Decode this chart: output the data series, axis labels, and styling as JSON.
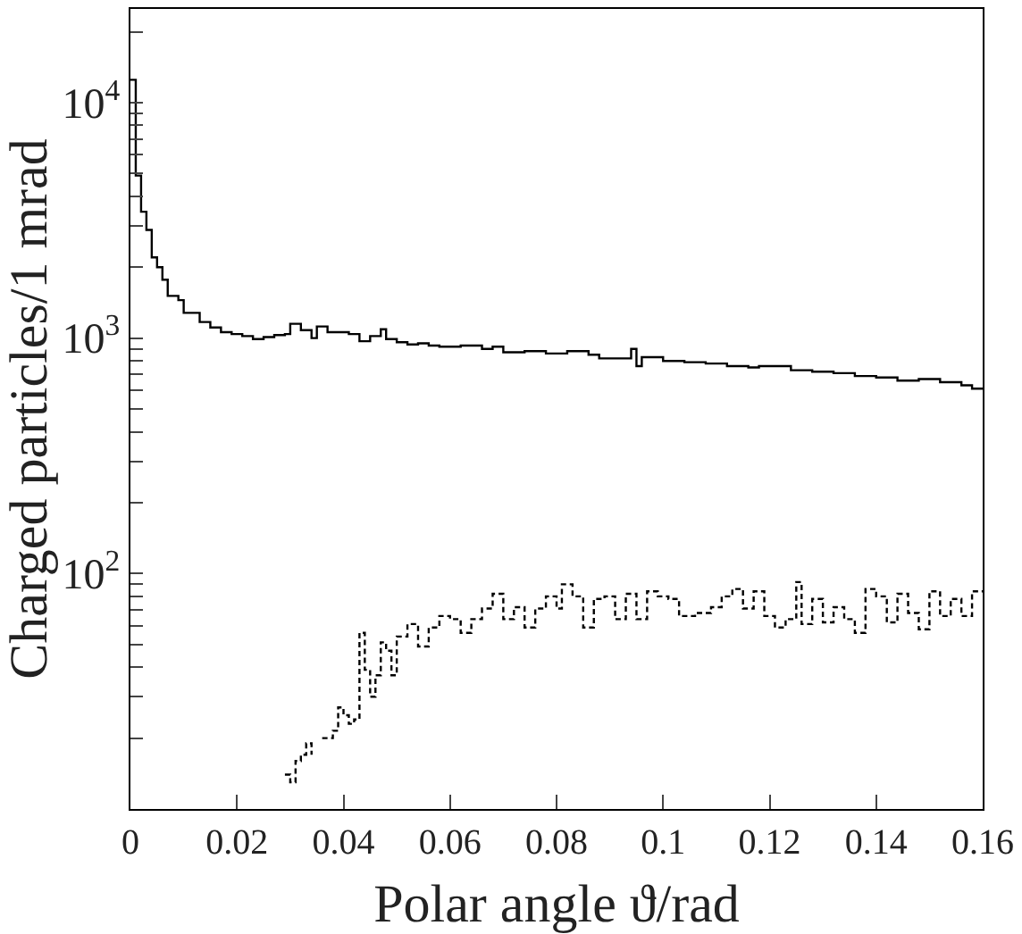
{
  "chart_data": {
    "type": "step",
    "xlabel": "Polar angle ϑ/rad",
    "ylabel": "Charged particles/1 mrad",
    "log": "y",
    "marker": "none",
    "xlim": [
      0,
      0.16
    ],
    "xticks": [
      0,
      0.02,
      0.04,
      0.06,
      0.08,
      0.1,
      0.12,
      0.14,
      0.16
    ],
    "ylim": [
      10,
      25000
    ],
    "yticks": [
      {
        "value": 20,
        "label": null
      },
      {
        "value": 30,
        "label": null
      },
      {
        "value": 40,
        "label": null
      },
      {
        "value": 50,
        "label": null
      },
      {
        "value": 60,
        "label": null
      },
      {
        "value": 70,
        "label": null
      },
      {
        "value": 80,
        "label": null
      },
      {
        "value": 90,
        "label": null
      },
      {
        "value": 100,
        "label": "10$^{2}$"
      },
      {
        "value": 200,
        "label": null
      },
      {
        "value": 300,
        "label": null
      },
      {
        "value": 400,
        "label": null
      },
      {
        "value": 500,
        "label": null
      },
      {
        "value": 600,
        "label": null
      },
      {
        "value": 700,
        "label": null
      },
      {
        "value": 800,
        "label": null
      },
      {
        "value": 900,
        "label": null
      },
      {
        "value": 1000,
        "label": "10$^{3}$"
      },
      {
        "value": 2000,
        "label": null
      },
      {
        "value": 3000,
        "label": null
      },
      {
        "value": 4000,
        "label": null
      },
      {
        "value": 5000,
        "label": null
      },
      {
        "value": 6000,
        "label": null
      },
      {
        "value": 7000,
        "label": null
      },
      {
        "value": 8000,
        "label": null
      },
      {
        "value": 9000,
        "label": null
      },
      {
        "value": 10000,
        "label": "10$^{4}$"
      },
      {
        "value": 20000,
        "label": null
      }
    ],
    "series": [
      {
        "color": "#000000",
        "line_style": "solid",
        "x": [
          0,
          0.001,
          0.002,
          0.003,
          0.004,
          0.005,
          0.006,
          0.007,
          0.009,
          0.01,
          0.013,
          0.015,
          0.017,
          0.019,
          0.021,
          0.023,
          0.025,
          0.027,
          0.029,
          0.03,
          0.032,
          0.034,
          0.035,
          0.037,
          0.041,
          0.043,
          0.045,
          0.047,
          0.048,
          0.05,
          0.052,
          0.054,
          0.056,
          0.058,
          0.062,
          0.066,
          0.068,
          0.07,
          0.074,
          0.078,
          0.082,
          0.086,
          0.088,
          0.094,
          0.095,
          0.096,
          0.1,
          0.104,
          0.108,
          0.112,
          0.116,
          0.118,
          0.124,
          0.128,
          0.132,
          0.136,
          0.14,
          0.144,
          0.148,
          0.152,
          0.156,
          0.158,
          0.16
        ],
        "values": [
          12500,
          4900,
          3440,
          2880,
          2200,
          2000,
          1770,
          1510,
          1450,
          1280,
          1170,
          1110,
          1060,
          1040,
          1020,
          990,
          1010,
          1030,
          1040,
          1150,
          1080,
          1000,
          1120,
          1060,
          1040,
          970,
          1020,
          1090,
          990,
          960,
          940,
          950,
          930,
          920,
          930,
          900,
          920,
          870,
          880,
          860,
          880,
          850,
          820,
          900,
          760,
          830,
          800,
          790,
          780,
          760,
          750,
          760,
          730,
          720,
          710,
          690,
          680,
          660,
          670,
          650,
          630,
          610,
          610
        ]
      },
      {
        "color": "#000000",
        "line_style": "dashed",
        "x": [
          0.029,
          0.03,
          0.031,
          0.032,
          0.033,
          0.034,
          0.035,
          0.036,
          0.038,
          0.039,
          0.04,
          0.041,
          0.042,
          0.043,
          0.044,
          0.045,
          0.046,
          0.047,
          0.048,
          0.049,
          0.05,
          0.052,
          0.054,
          0.056,
          0.058,
          0.06,
          0.062,
          0.064,
          0.066,
          0.068,
          0.07,
          0.072,
          0.074,
          0.076,
          0.078,
          0.08,
          0.081,
          0.083,
          0.085,
          0.087,
          0.089,
          0.091,
          0.093,
          0.095,
          0.097,
          0.099,
          0.101,
          0.103,
          0.106,
          0.109,
          0.111,
          0.113,
          0.115,
          0.117,
          0.119,
          0.121,
          0.123,
          0.125,
          0.126,
          0.128,
          0.13,
          0.132,
          0.134,
          0.136,
          0.138,
          0.14,
          0.142,
          0.144,
          0.146,
          0.148,
          0.15,
          0.152,
          0.154,
          0.156,
          0.158,
          0.16
        ],
        "values": [
          14,
          13,
          16,
          17,
          19,
          17,
          null,
          20,
          21.5,
          27,
          25,
          23,
          24,
          56,
          39,
          30,
          37,
          51,
          47,
          37,
          54,
          61,
          49,
          59,
          66,
          64,
          56,
          64,
          71,
          82,
          64,
          72,
          59,
          71,
          80,
          71,
          90,
          80,
          59,
          78,
          80,
          64,
          82,
          64,
          84,
          80,
          78,
          66,
          68,
          72,
          80,
          86,
          71,
          84,
          66,
          59,
          64,
          92,
          61,
          78,
          62,
          72,
          64,
          56,
          86,
          80,
          62,
          82,
          68,
          58,
          84,
          66,
          78,
          66,
          84,
          84
        ]
      }
    ]
  }
}
